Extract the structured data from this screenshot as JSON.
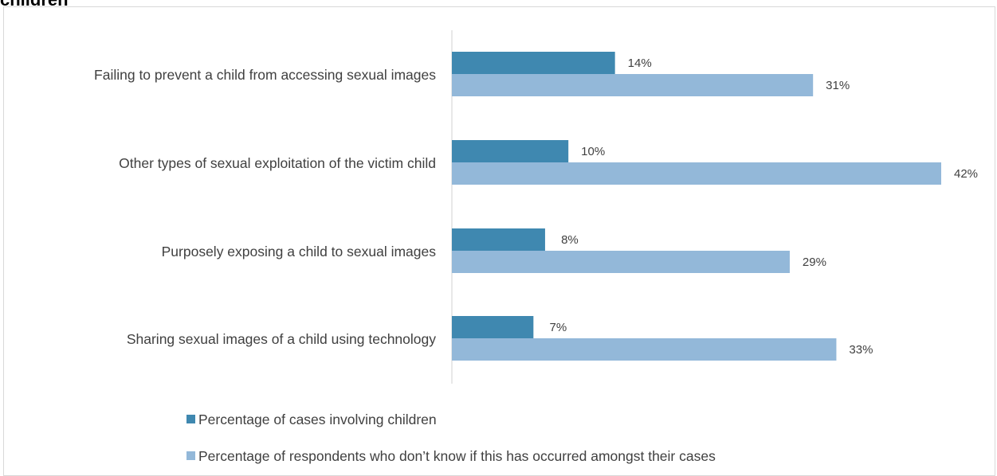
{
  "title_fragment": "children",
  "chart_data": {
    "type": "bar",
    "orientation": "horizontal",
    "categories": [
      "Failing to prevent a child from accessing sexual images",
      "Other types of sexual exploitation of the victim child",
      "Purposely exposing a child to sexual images",
      "Sharing sexual images of a child using technology"
    ],
    "series": [
      {
        "name": "Percentage of cases involving children",
        "color": "#3f88b0",
        "values": [
          14,
          10,
          8,
          7
        ],
        "labels": [
          "14%",
          "10%",
          "8%",
          "7%"
        ]
      },
      {
        "name": "Percentage of respondents who don’t know if this has occurred amongst their cases",
        "color": "#93b8d9",
        "values": [
          31,
          42,
          29,
          33
        ],
        "labels": [
          "31%",
          "42%",
          "29%",
          "33%"
        ]
      }
    ],
    "xlim": [
      0,
      42
    ],
    "grid": false,
    "legend_position": "bottom"
  }
}
